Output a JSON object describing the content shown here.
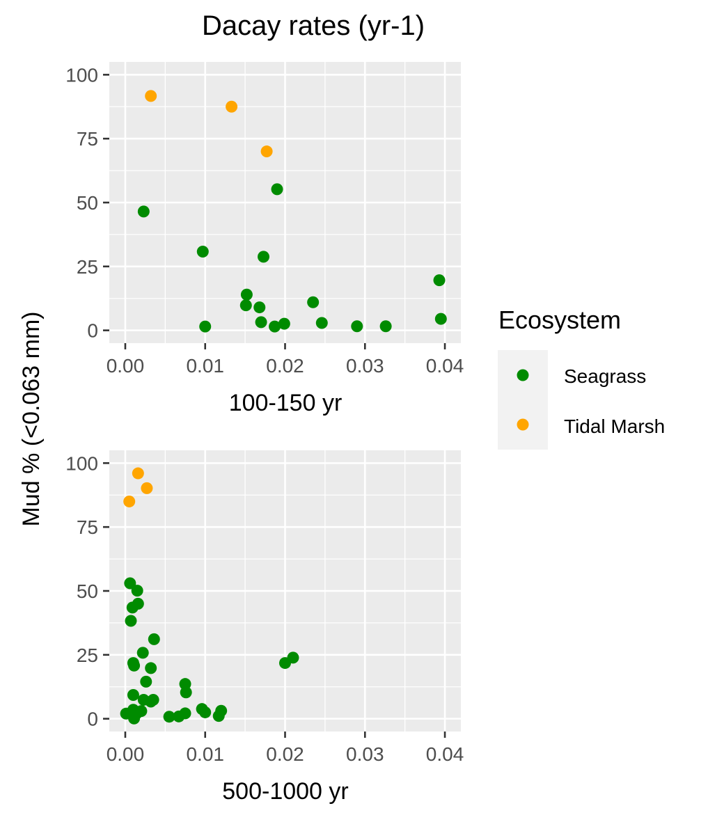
{
  "chart_data": {
    "type": "scatter",
    "title": "Dacay rates (yr-1)",
    "ylabel": "Mud % (<0.063 mm)",
    "ylim": [
      -5,
      105
    ],
    "yticks": [
      0,
      25,
      50,
      75,
      100
    ],
    "xlim": [
      -0.002,
      0.042
    ],
    "xticks": [
      0.0,
      0.01,
      0.02,
      0.03,
      0.04
    ],
    "xtick_labels": [
      "0.00",
      "0.01",
      "0.02",
      "0.03",
      "0.04"
    ],
    "grid": true,
    "legend": {
      "title": "Ecosystem",
      "position": "right",
      "entries": [
        {
          "name": "Seagrass",
          "color": "#008B00"
        },
        {
          "name": "Tidal Marsh",
          "color": "#FFA500"
        }
      ]
    },
    "panels": [
      {
        "xlabel": "100-150 yr",
        "series": [
          {
            "name": "Seagrass",
            "color": "#008B00",
            "points": [
              [
                0.0023,
                46.5
              ],
              [
                0.0097,
                30.8
              ],
              [
                0.01,
                1.5
              ],
              [
                0.0152,
                14.0
              ],
              [
                0.0151,
                9.8
              ],
              [
                0.0168,
                9.0
              ],
              [
                0.017,
                3.2
              ],
              [
                0.0173,
                28.8
              ],
              [
                0.0187,
                1.5
              ],
              [
                0.019,
                55.2
              ],
              [
                0.0199,
                2.6
              ],
              [
                0.0235,
                11.0
              ],
              [
                0.0246,
                2.9
              ],
              [
                0.029,
                1.6
              ],
              [
                0.0326,
                1.6
              ],
              [
                0.0393,
                19.6
              ],
              [
                0.0395,
                4.5
              ]
            ]
          },
          {
            "name": "Tidal Marsh",
            "color": "#FFA500",
            "points": [
              [
                0.0032,
                91.7
              ],
              [
                0.0133,
                87.5
              ],
              [
                0.0177,
                70.0
              ]
            ]
          }
        ]
      },
      {
        "xlabel": "500-1000 yr",
        "series": [
          {
            "name": "Seagrass",
            "color": "#008B00",
            "points": [
              [
                0.0001,
                2.0
              ],
              [
                0.0006,
                53.0
              ],
              [
                0.0007,
                38.3
              ],
              [
                0.0009,
                43.5
              ],
              [
                0.001,
                21.8
              ],
              [
                0.0011,
                20.8
              ],
              [
                0.001,
                9.3
              ],
              [
                0.001,
                3.5
              ],
              [
                0.0011,
                0.1
              ],
              [
                0.0014,
                2.0
              ],
              [
                0.0015,
                50.1
              ],
              [
                0.0016,
                45.0
              ],
              [
                0.002,
                3.0
              ],
              [
                0.0022,
                25.8
              ],
              [
                0.0023,
                7.4
              ],
              [
                0.0026,
                14.5
              ],
              [
                0.0032,
                19.8
              ],
              [
                0.0032,
                6.7
              ],
              [
                0.0035,
                7.4
              ],
              [
                0.0036,
                31.1
              ],
              [
                0.0055,
                0.8
              ],
              [
                0.0067,
                0.9
              ],
              [
                0.0075,
                2.1
              ],
              [
                0.0075,
                13.6
              ],
              [
                0.0076,
                10.3
              ],
              [
                0.0096,
                3.8
              ],
              [
                0.01,
                2.5
              ],
              [
                0.0117,
                1.1
              ],
              [
                0.012,
                3.1
              ],
              [
                0.02,
                21.8
              ],
              [
                0.021,
                23.9
              ]
            ]
          },
          {
            "name": "Tidal Marsh",
            "color": "#FFA500",
            "points": [
              [
                0.0005,
                85.0
              ],
              [
                0.0016,
                96.0
              ],
              [
                0.0027,
                90.2
              ]
            ]
          }
        ]
      }
    ]
  }
}
